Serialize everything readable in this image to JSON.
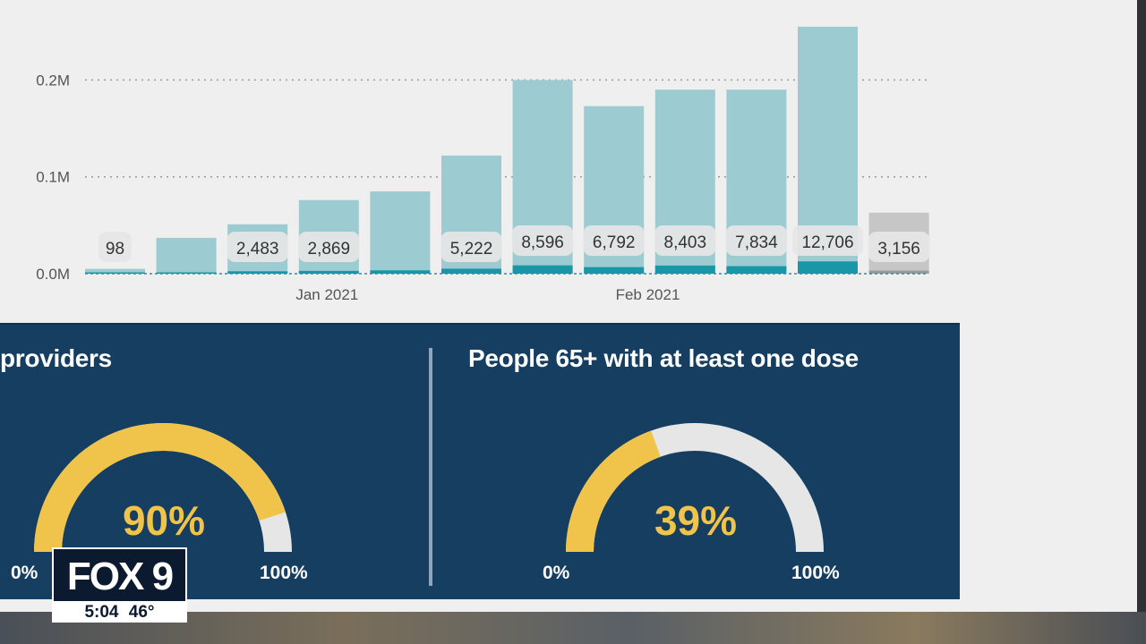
{
  "chart_data": {
    "type": "bar",
    "x_tick_labels": [
      {
        "label": "Jan 2021",
        "at_index": 3
      },
      {
        "label": "Feb 2021",
        "at_index": 7.5
      }
    ],
    "y_tick_labels": [
      "0.0M",
      "0.1M",
      "0.2M"
    ],
    "ylim": [
      0,
      0.27
    ],
    "grid": true,
    "series": [
      {
        "values": [
          0.005,
          0.037,
          0.051,
          0.076,
          0.085,
          0.122,
          0.2,
          0.173,
          0.19,
          0.19,
          0.255,
          0.063
        ]
      },
      {
        "values": [
          0.0001,
          0.0013,
          0.0025,
          0.0029,
          0.0035,
          0.0052,
          0.0086,
          0.0068,
          0.0084,
          0.0078,
          0.0127,
          0.0032
        ]
      }
    ],
    "bar_labels": [
      "98",
      "",
      "2,483",
      "2,869",
      "",
      "5,222",
      "8,596",
      "6,792",
      "8,403",
      "7,834",
      "12,706",
      "3,156"
    ],
    "colors": {
      "main": "#9ccbd1",
      "secondary": "#1a97a6",
      "last_main": "#c6c6c6",
      "last_secondary": "#9a9a9a"
    }
  },
  "gauges": [
    {
      "title": "providers",
      "value_text": "90%",
      "value": 90,
      "min_label": "0%",
      "max_label": "100%"
    },
    {
      "title": "People 65+ with at least one dose",
      "value_text": "39%",
      "value": 39,
      "min_label": "0%",
      "max_label": "100%"
    }
  ],
  "colors": {
    "panel": "#163e61",
    "fill": "#f0c44a",
    "track": "#e6e6e6"
  },
  "logo": {
    "name": "FOX 9",
    "time": "5:04",
    "temp": "46°"
  }
}
